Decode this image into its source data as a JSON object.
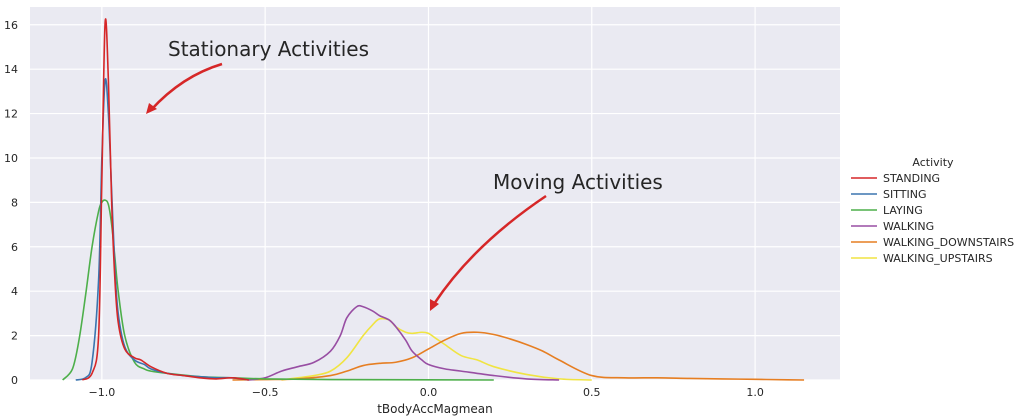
{
  "chart_data": {
    "type": "line",
    "title": "",
    "xlabel": "tBodyAccMagmean",
    "ylabel": "",
    "xlim": [
      -1.22,
      1.26
    ],
    "ylim": [
      0,
      16.8
    ],
    "xticks": [
      -1.0,
      -0.5,
      0.0,
      0.5,
      1.0
    ],
    "xtick_labels": [
      "−1.0",
      "−0.5",
      "0.0",
      "0.5",
      "1.0"
    ],
    "yticks": [
      0,
      2,
      4,
      6,
      8,
      10,
      12,
      14,
      16
    ],
    "ytick_labels": [
      "0",
      "2",
      "4",
      "6",
      "8",
      "10",
      "12",
      "14",
      "16"
    ],
    "grid": true,
    "legend": {
      "title": "Activity",
      "placement": "right"
    },
    "series": [
      {
        "name": "STANDING",
        "color": "#d62728",
        "x": [
          -1.06,
          -1.03,
          -1.01,
          -1.0,
          -0.99,
          -0.98,
          -0.97,
          -0.96,
          -0.95,
          -0.93,
          -0.9,
          -0.88,
          -0.85,
          -0.8,
          -0.75,
          -0.7,
          -0.65,
          -0.6,
          -0.55
        ],
        "y": [
          0,
          0.3,
          2.0,
          9.0,
          16.1,
          13.5,
          8.0,
          4.5,
          2.6,
          1.4,
          1.0,
          0.9,
          0.6,
          0.3,
          0.2,
          0.1,
          0.05,
          0.1,
          0
        ]
      },
      {
        "name": "SITTING",
        "color": "#3b75af",
        "x": [
          -1.08,
          -1.05,
          -1.03,
          -1.01,
          -1.0,
          -0.99,
          -0.98,
          -0.97,
          -0.96,
          -0.95,
          -0.93,
          -0.9,
          -0.87,
          -0.85,
          -0.8,
          -0.75,
          -0.7,
          -0.65,
          -0.6,
          -0.55
        ],
        "y": [
          0,
          0.1,
          0.8,
          4.5,
          10.0,
          13.5,
          12.0,
          8.5,
          5.0,
          3.0,
          1.5,
          0.9,
          0.7,
          0.5,
          0.3,
          0.2,
          0.15,
          0.1,
          0.1,
          0
        ]
      },
      {
        "name": "LAYING",
        "color": "#4daf4a",
        "x": [
          -1.12,
          -1.09,
          -1.07,
          -1.05,
          -1.03,
          -1.01,
          -1.0,
          -0.99,
          -0.98,
          -0.97,
          -0.96,
          -0.95,
          -0.93,
          -0.9,
          -0.87,
          -0.85,
          -0.8,
          -0.7,
          -0.6,
          -0.5,
          -0.3,
          0.0,
          0.2
        ],
        "y": [
          0,
          0.5,
          1.8,
          3.8,
          6.0,
          7.6,
          8.0,
          8.1,
          7.9,
          7.0,
          5.5,
          4.0,
          2.0,
          0.8,
          0.5,
          0.4,
          0.3,
          0.15,
          0.1,
          0.05,
          0.02,
          0.01,
          0
        ]
      },
      {
        "name": "WALKING",
        "color": "#984ea3",
        "x": [
          -0.55,
          -0.5,
          -0.45,
          -0.4,
          -0.35,
          -0.3,
          -0.27,
          -0.25,
          -0.22,
          -0.2,
          -0.17,
          -0.15,
          -0.12,
          -0.1,
          -0.07,
          -0.05,
          -0.02,
          0.0,
          0.05,
          0.1,
          0.2,
          0.3,
          0.4
        ],
        "y": [
          0,
          0.1,
          0.4,
          0.6,
          0.8,
          1.3,
          2.0,
          2.8,
          3.3,
          3.3,
          3.1,
          2.9,
          2.7,
          2.4,
          1.8,
          1.3,
          0.9,
          0.7,
          0.5,
          0.4,
          0.2,
          0.05,
          0
        ]
      },
      {
        "name": "WALKING_DOWNSTAIRS",
        "color": "#e67e22",
        "x": [
          -0.6,
          -0.5,
          -0.4,
          -0.3,
          -0.25,
          -0.2,
          -0.15,
          -0.1,
          -0.05,
          0.0,
          0.05,
          0.1,
          0.15,
          0.2,
          0.25,
          0.3,
          0.35,
          0.4,
          0.5,
          0.6,
          0.7,
          0.8,
          0.9,
          1.0,
          1.1,
          1.15
        ],
        "y": [
          0,
          0.02,
          0.05,
          0.2,
          0.4,
          0.65,
          0.75,
          0.8,
          1.0,
          1.4,
          1.8,
          2.1,
          2.15,
          2.05,
          1.85,
          1.6,
          1.3,
          0.9,
          0.2,
          0.1,
          0.1,
          0.07,
          0.05,
          0.03,
          0.01,
          0
        ]
      },
      {
        "name": "WALKING_UPSTAIRS",
        "color": "#f0e442",
        "x": [
          -0.45,
          -0.4,
          -0.35,
          -0.3,
          -0.25,
          -0.2,
          -0.17,
          -0.15,
          -0.12,
          -0.1,
          -0.07,
          -0.05,
          -0.02,
          0.0,
          0.02,
          0.05,
          0.1,
          0.15,
          0.2,
          0.3,
          0.4,
          0.5
        ],
        "y": [
          0,
          0.1,
          0.2,
          0.4,
          1.0,
          2.0,
          2.5,
          2.75,
          2.7,
          2.4,
          2.15,
          2.1,
          2.15,
          2.1,
          1.9,
          1.6,
          1.1,
          0.9,
          0.6,
          0.25,
          0.05,
          0
        ]
      }
    ],
    "annotations": [
      {
        "text": "Stationary Activities",
        "color": "#d62728"
      },
      {
        "text": "Moving Activities",
        "color": "#d62728"
      }
    ]
  }
}
